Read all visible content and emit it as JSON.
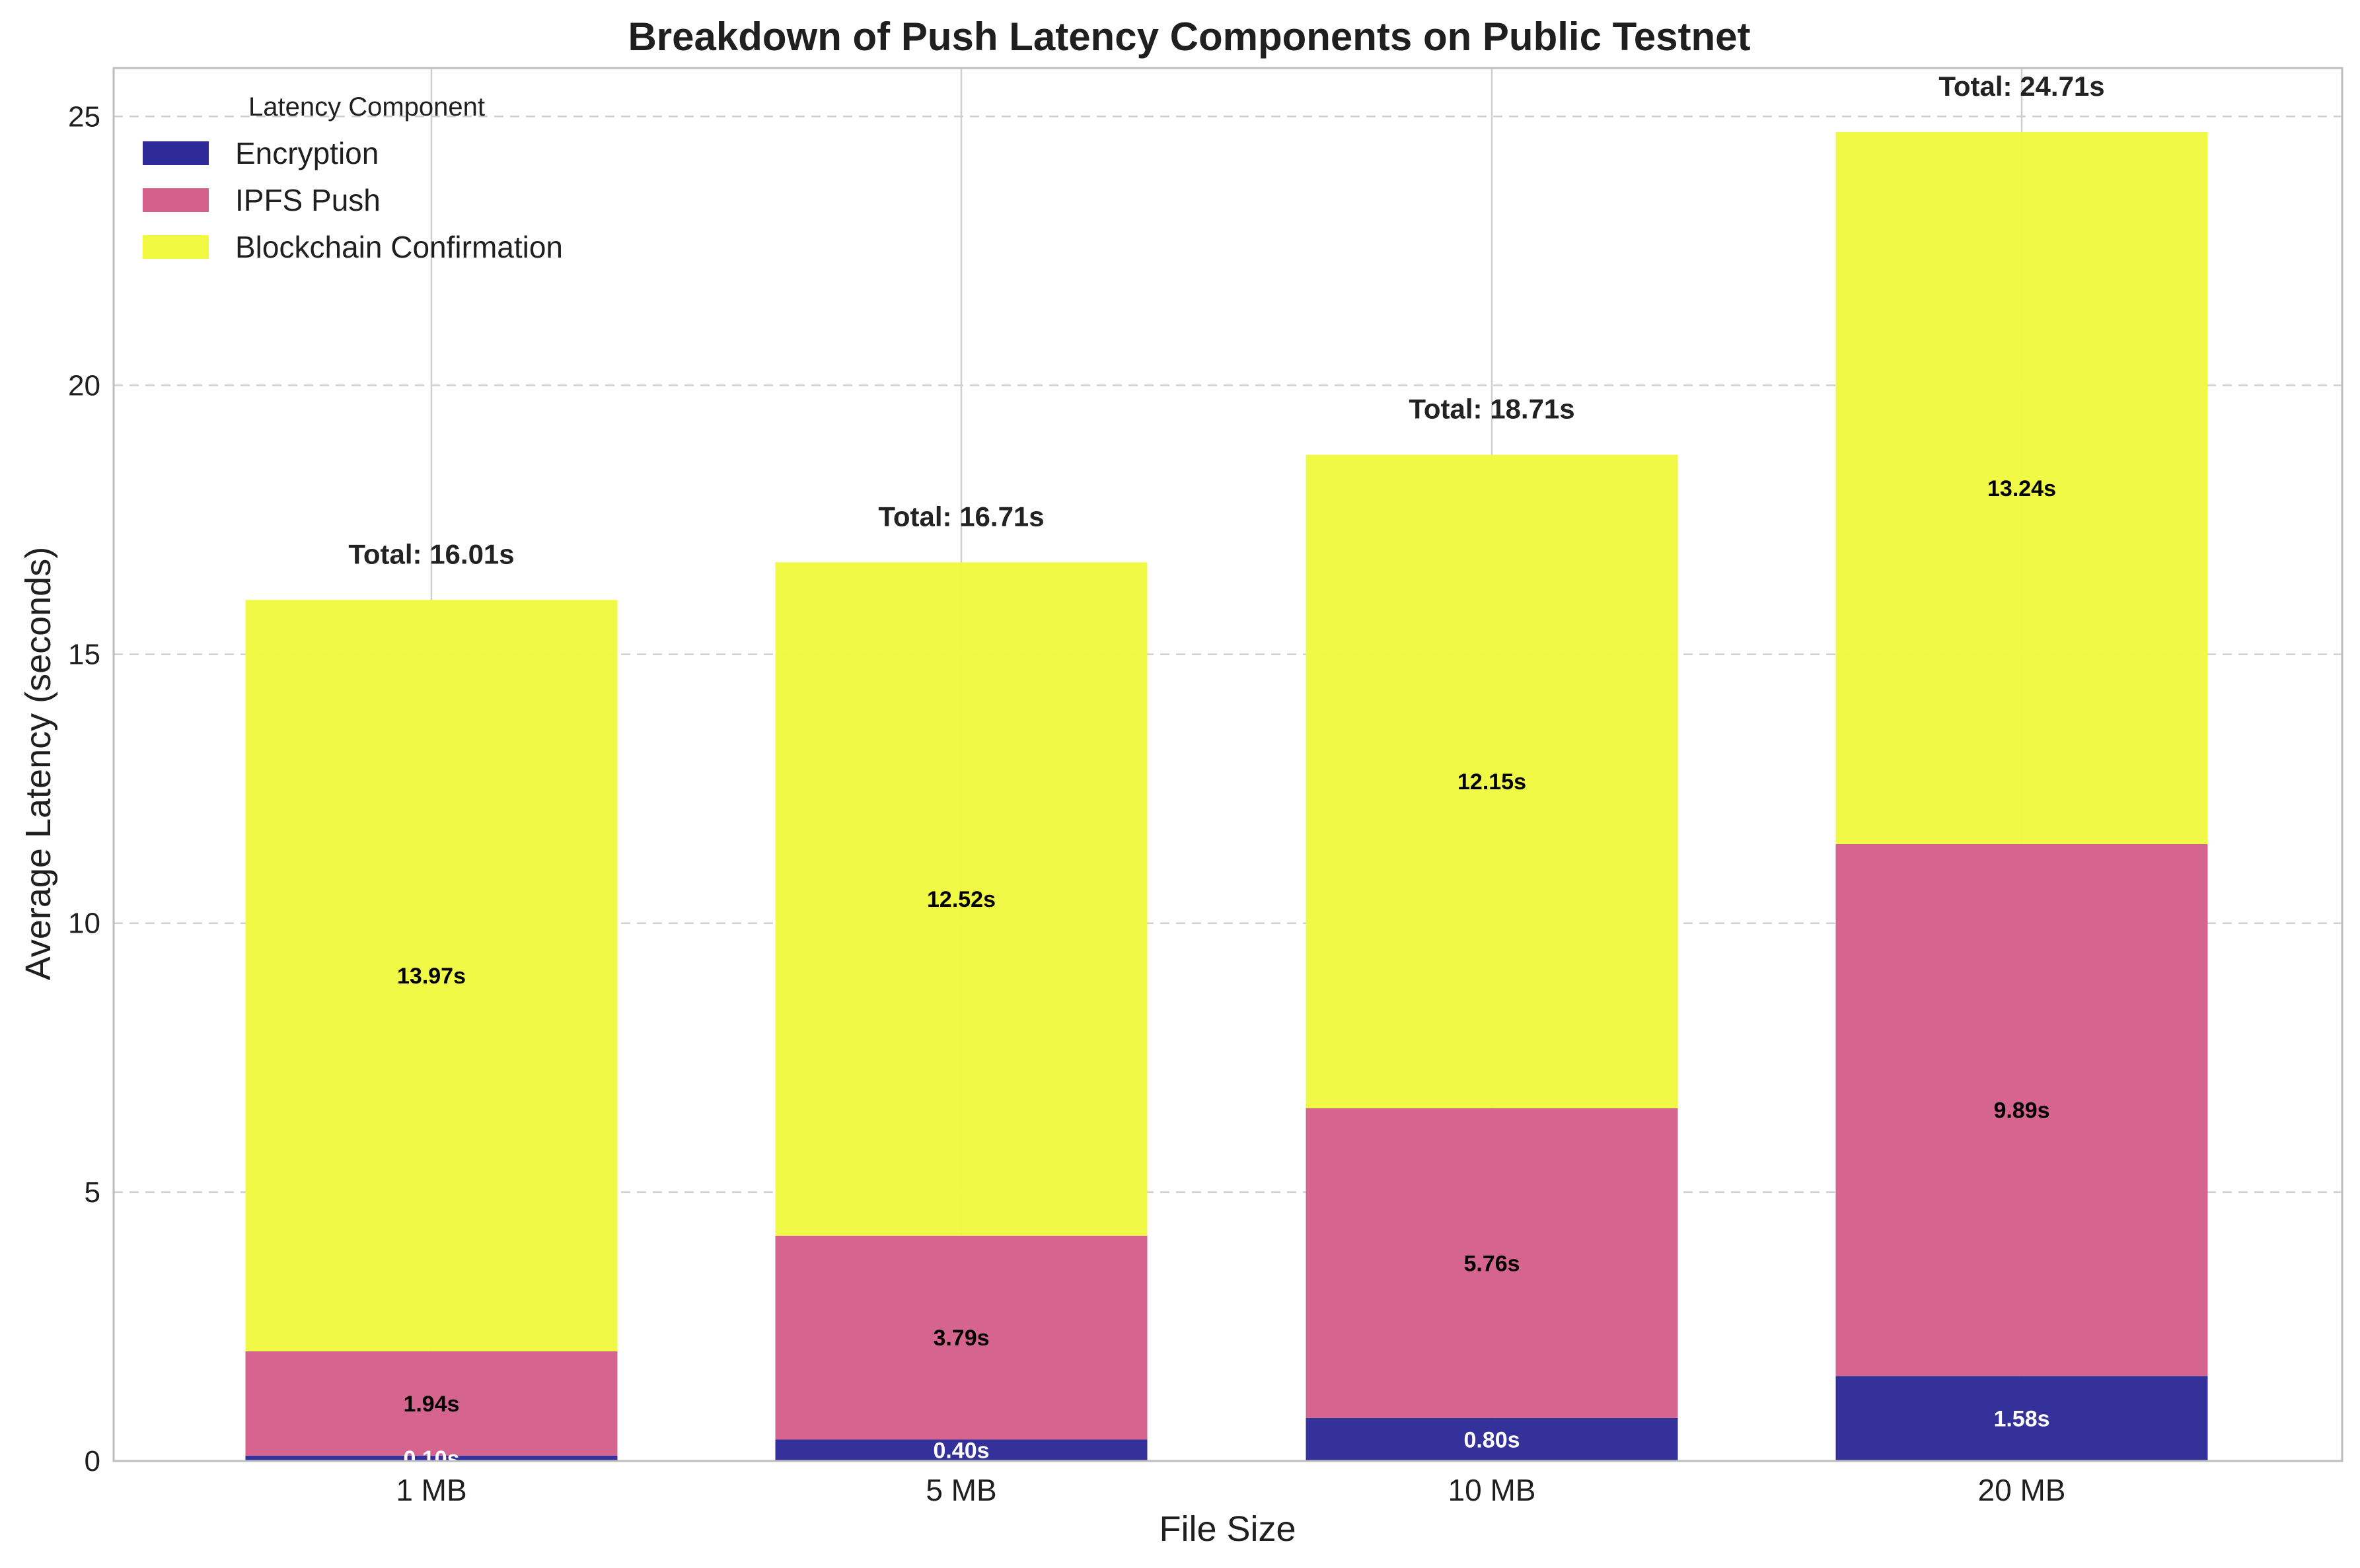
{
  "chart_data": {
    "type": "bar",
    "stacked": true,
    "title": "Breakdown of Push Latency Components on Public Testnet",
    "xlabel": "File Size",
    "ylabel": "Average Latency (seconds)",
    "categories": [
      "1 MB",
      "5 MB",
      "10 MB",
      "20 MB"
    ],
    "series": [
      {
        "name": "Encryption",
        "values": [
          0.1,
          0.4,
          0.8,
          1.58
        ],
        "labels": [
          "0.10s",
          "0.40s",
          "0.80s",
          "1.58s"
        ],
        "color": "#2e2a98",
        "label_color": "#ffffff"
      },
      {
        "name": "IPFS Push",
        "values": [
          1.94,
          3.79,
          5.76,
          9.89
        ],
        "labels": [
          "1.94s",
          "3.79s",
          "5.76s",
          "9.89s"
        ],
        "color": "#d4608a",
        "label_color": "#000000"
      },
      {
        "name": "Blockchain Confirmation",
        "values": [
          13.97,
          12.52,
          12.15,
          13.24
        ],
        "labels": [
          "13.97s",
          "12.52s",
          "12.15s",
          "13.24s"
        ],
        "color": "#f0f940",
        "label_color": "#000000"
      }
    ],
    "totals": [
      "Total: 16.01s",
      "Total: 16.71s",
      "Total: 18.71s",
      "Total: 24.71s"
    ],
    "total_values": [
      16.01,
      16.71,
      18.71,
      24.71
    ],
    "ylim": [
      0,
      25.9
    ],
    "yticks": [
      0,
      5,
      10,
      15,
      20,
      25
    ],
    "ytick_labels": [
      "0",
      "5",
      "10",
      "15",
      "20",
      "25"
    ],
    "grid": true,
    "legend": {
      "title": "Latency Component",
      "placement": "top-left"
    }
  }
}
